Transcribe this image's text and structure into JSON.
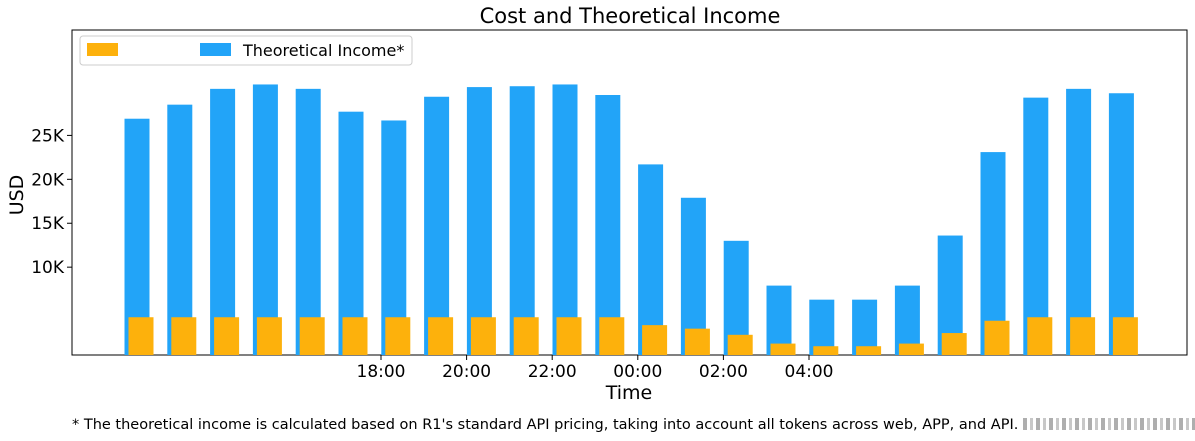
{
  "chart_data": {
    "type": "bar",
    "title": "Cost and Theoretical Income",
    "xlabel": "Time",
    "ylabel": "USD",
    "ylim": [
      0,
      37000
    ],
    "yticks": [
      10000,
      15000,
      20000,
      25000
    ],
    "ytick_labels": [
      "10K",
      "15K",
      "20K",
      "25K"
    ],
    "categories": [
      "",
      "",
      "",
      "",
      "",
      "18:00",
      "",
      "20:00",
      "",
      "22:00",
      "",
      "00:00",
      "",
      "02:00",
      "",
      "04:00",
      "",
      "",
      "",
      "",
      "",
      "",
      "",
      ""
    ],
    "series": [
      {
        "name": "",
        "color": "#fdb10c",
        "values": [
          4300,
          4300,
          4300,
          4300,
          4300,
          4300,
          4300,
          4300,
          4300,
          4300,
          4300,
          4300,
          3400,
          3000,
          2300,
          1300,
          1000,
          1000,
          1300,
          2500,
          3900,
          4300,
          4300,
          4300
        ]
      },
      {
        "name": "Theoretical Income*",
        "color": "#22a4f8",
        "values": [
          26900,
          28500,
          30300,
          30800,
          30300,
          27700,
          26700,
          29400,
          30500,
          30600,
          30800,
          29600,
          21700,
          17900,
          13000,
          7900,
          6300,
          6300,
          7900,
          13600,
          23100,
          29300,
          30300,
          29800
        ]
      }
    ],
    "legend": "top-left",
    "grid": false
  },
  "footnote": "* The theoretical income is calculated based on R1's standard API pricing, taking into account all tokens across web, APP, and API."
}
